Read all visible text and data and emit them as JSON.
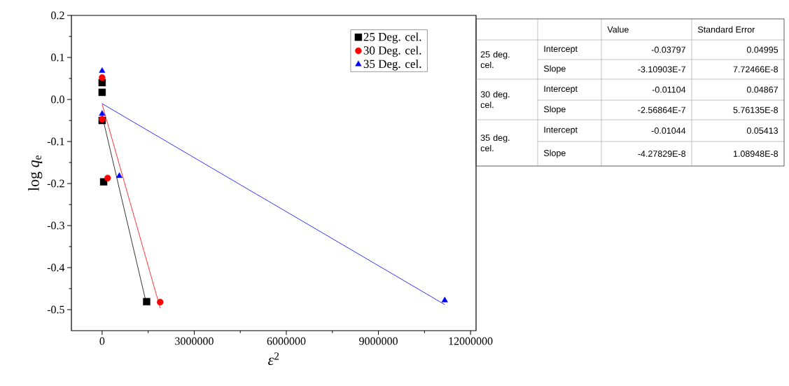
{
  "chart_data": [
    {
      "type": "scatter",
      "xlabel": "*ε*$^{2}$",
      "ylabel": "log *q*$_{e}$",
      "xlim": [
        -1000000,
        12180000
      ],
      "ylim": [
        -0.55,
        0.2
      ],
      "xticks": [
        0,
        3000000,
        6000000,
        9000000,
        12000000
      ],
      "yticks": [
        -0.5,
        -0.4,
        -0.3,
        -0.2,
        -0.1,
        {
          "value": 0,
          "label": "0.0"
        },
        0.1,
        0.2
      ],
      "legend": "top right",
      "grid": false,
      "series": [
        {
          "name": "25 Deg. cel.",
          "type": "scatter",
          "marker": "square",
          "color": "#000000",
          "x": [
            0,
            0,
            0,
            50000,
            1450000
          ],
          "values": [
            0.04,
            0.017,
            -0.05,
            -0.196,
            -0.481
          ]
        },
        {
          "name": "30 Deg. cel.",
          "type": "scatter",
          "marker": "circle",
          "color": "#ff0000",
          "x": [
            0,
            0,
            180000,
            1890000
          ],
          "values": [
            0.052,
            -0.047,
            -0.187,
            -0.482
          ]
        },
        {
          "name": "35 Deg. cel.",
          "type": "scatter",
          "marker": "triangle",
          "color": "#0000ff",
          "x": [
            0,
            0,
            560000,
            11160000
          ],
          "values": [
            0.068,
            -0.034,
            -0.182,
            -0.478
          ]
        },
        {
          "type": "line",
          "marker": "none",
          "color": "#000000",
          "x": [
            0,
            1450000
          ],
          "values": [
            -0.038,
            -0.488
          ]
        },
        {
          "type": "line",
          "marker": "none",
          "color": "#ff0000",
          "x": [
            0,
            1890000
          ],
          "values": [
            -0.011,
            -0.496
          ]
        },
        {
          "type": "line",
          "marker": "none",
          "color": "#0000ff",
          "x": [
            0,
            11160000
          ],
          "values": [
            -0.01,
            -0.488
          ]
        }
      ]
    },
    {
      "type": "other",
      "annotations": [
        "Value",
        "Standard Error",
        "25 deg. cel.",
        "Intercept",
        "-0.03797",
        "0.04995",
        "Slope",
        "-3.10903E-7",
        "7.72466E-8",
        "30 deg. cel.",
        "Intercept",
        "-0.01104",
        "0.04867",
        "Slope",
        "-2.56864E-7",
        "5.76135E-8",
        "35 deg. cel.",
        "Intercept",
        "-0.01044",
        "0.05413",
        "Slope",
        "-4.27829E-8",
        "1.08948E-8"
      ]
    }
  ]
}
